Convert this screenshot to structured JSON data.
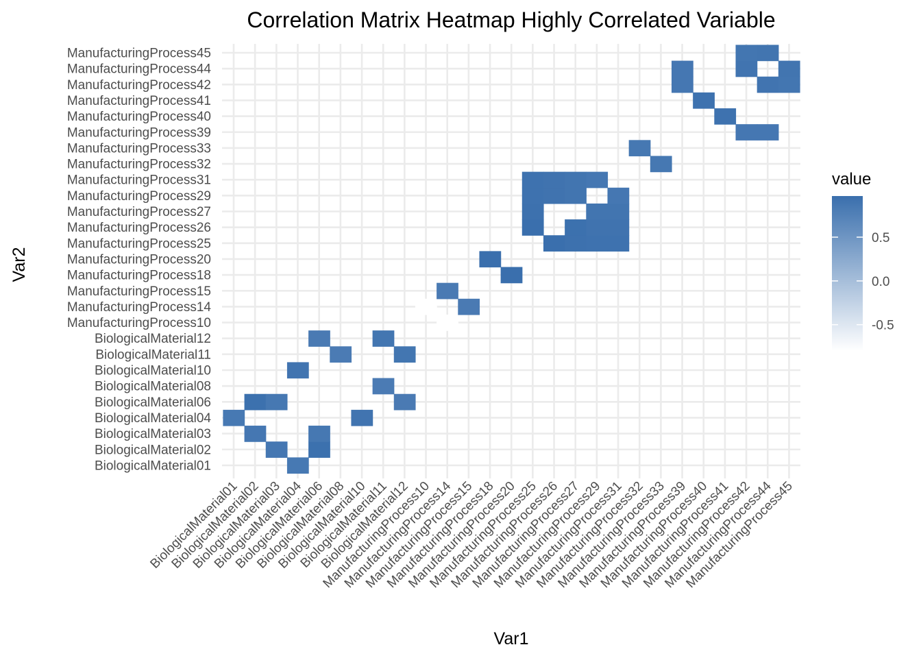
{
  "chart_data": {
    "type": "heatmap",
    "title": "Correlation Matrix Heatmap Highly Correlated Variable",
    "xlabel": "Var1",
    "ylabel": "Var2",
    "variables": [
      "BiologicalMaterial01",
      "BiologicalMaterial02",
      "BiologicalMaterial03",
      "BiologicalMaterial04",
      "BiologicalMaterial06",
      "BiologicalMaterial08",
      "BiologicalMaterial10",
      "BiologicalMaterial11",
      "BiologicalMaterial12",
      "ManufacturingProcess10",
      "ManufacturingProcess14",
      "ManufacturingProcess15",
      "ManufacturingProcess18",
      "ManufacturingProcess20",
      "ManufacturingProcess25",
      "ManufacturingProcess26",
      "ManufacturingProcess27",
      "ManufacturingProcess29",
      "ManufacturingProcess31",
      "ManufacturingProcess32",
      "ManufacturingProcess33",
      "ManufacturingProcess39",
      "ManufacturingProcess40",
      "ManufacturingProcess41",
      "ManufacturingProcess42",
      "ManufacturingProcess44",
      "ManufacturingProcess45"
    ],
    "cells": [
      {
        "x": "BiologicalMaterial01",
        "y": "BiologicalMaterial04",
        "value": 0.85
      },
      {
        "x": "BiologicalMaterial02",
        "y": "BiologicalMaterial03",
        "value": 0.87
      },
      {
        "x": "BiologicalMaterial02",
        "y": "BiologicalMaterial06",
        "value": 0.95
      },
      {
        "x": "BiologicalMaterial03",
        "y": "BiologicalMaterial02",
        "value": 0.87
      },
      {
        "x": "BiologicalMaterial03",
        "y": "BiologicalMaterial06",
        "value": 0.86
      },
      {
        "x": "BiologicalMaterial04",
        "y": "BiologicalMaterial01",
        "value": 0.85
      },
      {
        "x": "BiologicalMaterial04",
        "y": "BiologicalMaterial10",
        "value": 0.91
      },
      {
        "x": "BiologicalMaterial06",
        "y": "BiologicalMaterial02",
        "value": 0.95
      },
      {
        "x": "BiologicalMaterial06",
        "y": "BiologicalMaterial03",
        "value": 0.86
      },
      {
        "x": "BiologicalMaterial06",
        "y": "BiologicalMaterial12",
        "value": 0.83
      },
      {
        "x": "BiologicalMaterial08",
        "y": "BiologicalMaterial11",
        "value": 0.82
      },
      {
        "x": "BiologicalMaterial10",
        "y": "BiologicalMaterial04",
        "value": 0.91
      },
      {
        "x": "BiologicalMaterial11",
        "y": "BiologicalMaterial08",
        "value": 0.82
      },
      {
        "x": "BiologicalMaterial11",
        "y": "BiologicalMaterial12",
        "value": 0.89
      },
      {
        "x": "BiologicalMaterial12",
        "y": "BiologicalMaterial06",
        "value": 0.83
      },
      {
        "x": "BiologicalMaterial12",
        "y": "BiologicalMaterial11",
        "value": 0.89
      },
      {
        "x": "ManufacturingProcess10",
        "y": "ManufacturingProcess14",
        "value": -0.8
      },
      {
        "x": "ManufacturingProcess14",
        "y": "ManufacturingProcess10",
        "value": -0.8
      },
      {
        "x": "ManufacturingProcess14",
        "y": "ManufacturingProcess15",
        "value": 0.83
      },
      {
        "x": "ManufacturingProcess15",
        "y": "ManufacturingProcess14",
        "value": 0.83
      },
      {
        "x": "ManufacturingProcess18",
        "y": "ManufacturingProcess20",
        "value": 0.97
      },
      {
        "x": "ManufacturingProcess20",
        "y": "ManufacturingProcess18",
        "value": 0.97
      },
      {
        "x": "ManufacturingProcess25",
        "y": "ManufacturingProcess26",
        "value": 0.97
      },
      {
        "x": "ManufacturingProcess25",
        "y": "ManufacturingProcess27",
        "value": 0.94
      },
      {
        "x": "ManufacturingProcess25",
        "y": "ManufacturingProcess29",
        "value": 0.93
      },
      {
        "x": "ManufacturingProcess25",
        "y": "ManufacturingProcess31",
        "value": 0.93
      },
      {
        "x": "ManufacturingProcess26",
        "y": "ManufacturingProcess25",
        "value": 0.97
      },
      {
        "x": "ManufacturingProcess26",
        "y": "ManufacturingProcess29",
        "value": 0.92
      },
      {
        "x": "ManufacturingProcess26",
        "y": "ManufacturingProcess31",
        "value": 0.92
      },
      {
        "x": "ManufacturingProcess27",
        "y": "ManufacturingProcess25",
        "value": 0.94
      },
      {
        "x": "ManufacturingProcess27",
        "y": "ManufacturingProcess26",
        "value": 0.95
      },
      {
        "x": "ManufacturingProcess27",
        "y": "ManufacturingProcess29",
        "value": 0.9
      },
      {
        "x": "ManufacturingProcess27",
        "y": "ManufacturingProcess31",
        "value": 0.9
      },
      {
        "x": "ManufacturingProcess29",
        "y": "ManufacturingProcess25",
        "value": 0.93
      },
      {
        "x": "ManufacturingProcess29",
        "y": "ManufacturingProcess26",
        "value": 0.92
      },
      {
        "x": "ManufacturingProcess29",
        "y": "ManufacturingProcess27",
        "value": 0.9
      },
      {
        "x": "ManufacturingProcess29",
        "y": "ManufacturingProcess31",
        "value": 0.87
      },
      {
        "x": "ManufacturingProcess31",
        "y": "ManufacturingProcess25",
        "value": 0.93
      },
      {
        "x": "ManufacturingProcess31",
        "y": "ManufacturingProcess26",
        "value": 0.92
      },
      {
        "x": "ManufacturingProcess31",
        "y": "ManufacturingProcess27",
        "value": 0.9
      },
      {
        "x": "ManufacturingProcess31",
        "y": "ManufacturingProcess29",
        "value": 0.87
      },
      {
        "x": "ManufacturingProcess32",
        "y": "ManufacturingProcess33",
        "value": 0.86
      },
      {
        "x": "ManufacturingProcess33",
        "y": "ManufacturingProcess32",
        "value": 0.86
      },
      {
        "x": "ManufacturingProcess39",
        "y": "ManufacturingProcess42",
        "value": 0.87
      },
      {
        "x": "ManufacturingProcess39",
        "y": "ManufacturingProcess44",
        "value": 0.87
      },
      {
        "x": "ManufacturingProcess40",
        "y": "ManufacturingProcess41",
        "value": 0.93
      },
      {
        "x": "ManufacturingProcess41",
        "y": "ManufacturingProcess40",
        "value": 0.93
      },
      {
        "x": "ManufacturingProcess42",
        "y": "ManufacturingProcess39",
        "value": 0.87
      },
      {
        "x": "ManufacturingProcess42",
        "y": "ManufacturingProcess44",
        "value": 0.91
      },
      {
        "x": "ManufacturingProcess42",
        "y": "ManufacturingProcess45",
        "value": 0.89
      },
      {
        "x": "ManufacturingProcess44",
        "y": "ManufacturingProcess39",
        "value": 0.87
      },
      {
        "x": "ManufacturingProcess44",
        "y": "ManufacturingProcess42",
        "value": 0.91
      },
      {
        "x": "ManufacturingProcess44",
        "y": "ManufacturingProcess45",
        "value": 0.9
      },
      {
        "x": "ManufacturingProcess45",
        "y": "ManufacturingProcess42",
        "value": 0.89
      },
      {
        "x": "ManufacturingProcess45",
        "y": "ManufacturingProcess44",
        "value": 0.9
      }
    ],
    "color_scale": {
      "low_color": "#ffffff",
      "high_color": "#3a6fad",
      "limits": [
        -0.8,
        0.97
      ]
    },
    "legend": {
      "title": "value",
      "ticks": [
        0.5,
        0.0,
        -0.5
      ],
      "tick_labels": [
        "0.5",
        "0.0",
        "-0.5"
      ],
      "placement": "right"
    },
    "grid": true
  }
}
